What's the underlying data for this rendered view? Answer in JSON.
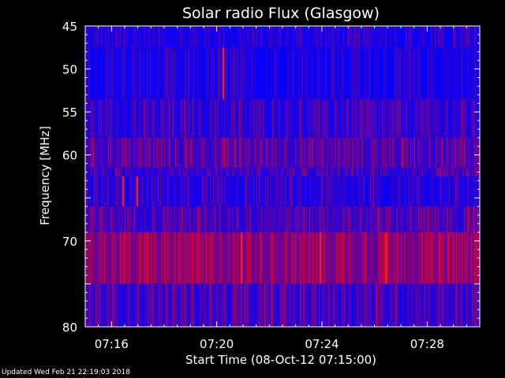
{
  "chart_data": {
    "type": "heatmap",
    "title": "Solar radio Flux (Glasgow)",
    "xlabel": "Start Time (08-Oct-12 07:15:00)",
    "ylabel": "Frequency [MHz]",
    "x_ticks": [
      "07:16",
      "07:20",
      "07:24",
      "07:28"
    ],
    "x_tick_minutes": [
      1,
      5,
      9,
      13
    ],
    "xlim_minutes": [
      0,
      15
    ],
    "y_ticks": [
      "45",
      "50",
      "55",
      "60",
      "",
      "70",
      "",
      "80"
    ],
    "y_tick_values": [
      45,
      50,
      55,
      60,
      65,
      70,
      75,
      80
    ],
    "ylim": [
      45,
      80
    ],
    "colormap": [
      "#0000ff",
      "#ff0000"
    ],
    "bands": [
      {
        "freq_range": [
          45,
          47.5
        ],
        "level": 0.15
      },
      {
        "freq_range": [
          47.5,
          53.5
        ],
        "level": 0.1
      },
      {
        "freq_range": [
          53.5,
          58
        ],
        "level": 0.25
      },
      {
        "freq_range": [
          58,
          61.5
        ],
        "level": 0.45
      },
      {
        "freq_range": [
          61.5,
          62.5
        ],
        "level": 0.3
      },
      {
        "freq_range": [
          62.5,
          66
        ],
        "level": 0.2
      },
      {
        "freq_range": [
          66,
          69
        ],
        "level": 0.4
      },
      {
        "freq_range": [
          69,
          75
        ],
        "level": 0.75
      },
      {
        "freq_range": [
          75,
          80
        ],
        "level": 0.35
      }
    ],
    "bursts": [
      {
        "time_min": 5.25,
        "freq_range": [
          47.5,
          53.5
        ]
      },
      {
        "time_min": 1.45,
        "freq_range": [
          62.5,
          66
        ]
      },
      {
        "time_min": 1.98,
        "freq_range": [
          62.5,
          66
        ]
      },
      {
        "time_min": 11.45,
        "freq_range": [
          69,
          75
        ]
      },
      {
        "time_min": 8.95,
        "freq_range": [
          69,
          75
        ]
      },
      {
        "time_min": 5.95,
        "freq_range": [
          69,
          75
        ]
      }
    ]
  },
  "footer": {
    "updated": "Updated Wed Feb 21 22:19:03 2018"
  }
}
